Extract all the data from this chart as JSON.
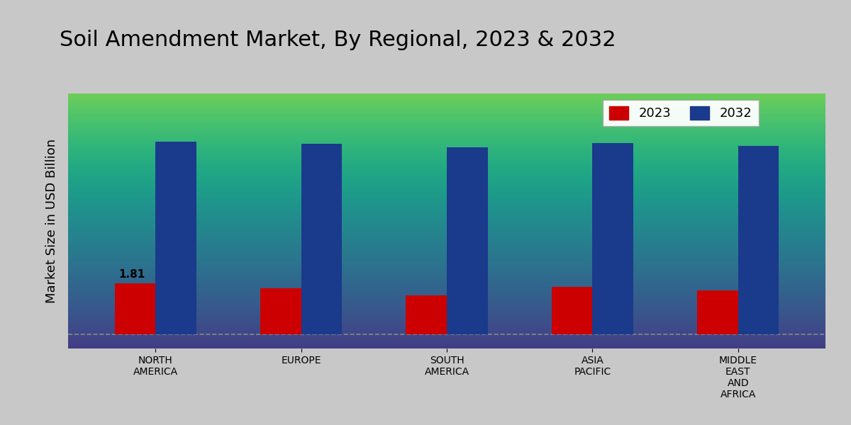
{
  "title": "Soil Amendment Market, By Regional, 2023 & 2032",
  "ylabel": "Market Size in USD Billion",
  "categories": [
    "NORTH\nAMERICA",
    "EUROPE",
    "SOUTH\nAMERICA",
    "ASIA\nPACIFIC",
    "MIDDLE\nEAST\nAND\nAFRICA"
  ],
  "values_2023": [
    1.81,
    1.62,
    1.38,
    1.68,
    1.55
  ],
  "values_2032": [
    6.8,
    6.72,
    6.6,
    6.75,
    6.65
  ],
  "color_2023": "#cc0000",
  "color_2032": "#1a3a8c",
  "bar_width": 0.28,
  "annotation_val": "1.81",
  "annotation_region": 0,
  "ylim": [
    -0.5,
    8.5
  ],
  "background_top": "#ffffff",
  "background_bottom": "#d0d0d0",
  "legend_labels": [
    "2023",
    "2032"
  ],
  "dashed_line_y": 0,
  "title_fontsize": 22,
  "axis_label_fontsize": 13,
  "tick_fontsize": 10
}
